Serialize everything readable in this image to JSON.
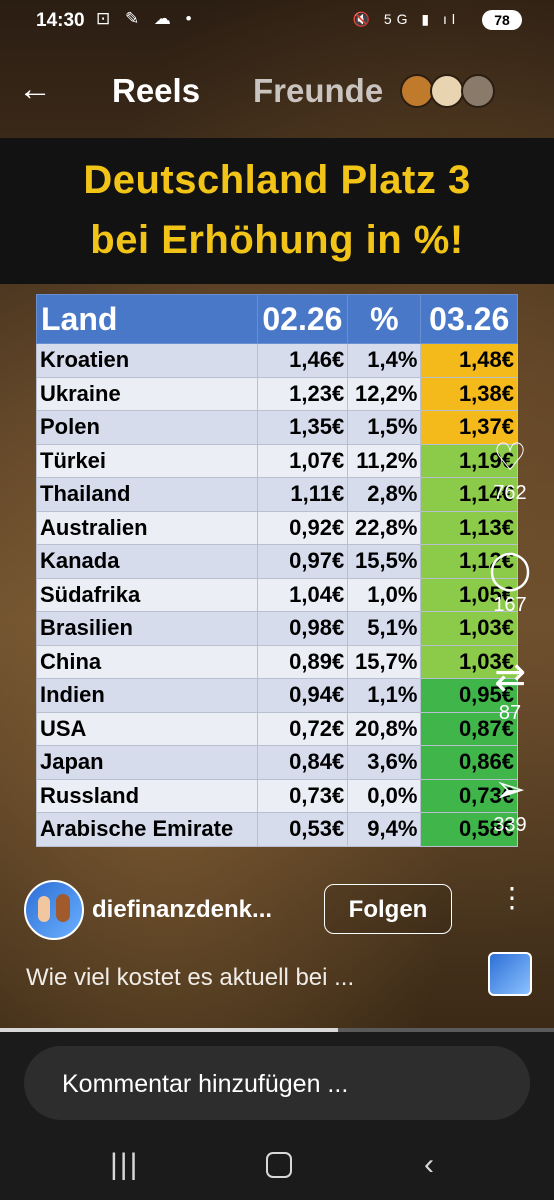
{
  "status_bar": {
    "time": "14:30",
    "left_icons": "⊡ ✎ ☁ •",
    "right_icons": "🔇 5G ▮ ıl",
    "battery": "78"
  },
  "nav": {
    "back_icon": "←",
    "reels_tab": "Reels",
    "friends_tab": "Freunde"
  },
  "video": {
    "headline_line1": "Deutschland Platz 3",
    "headline_line2": "bei Erhöhung in %!",
    "table": {
      "headers": [
        "Land",
        "02.26",
        "%",
        "03.26"
      ],
      "rows": [
        {
          "land": "Kroatien",
          "v1": "1,46€",
          "pct": "1,4%",
          "v2": "1,48€",
          "color": "#f4b91a"
        },
        {
          "land": "Ukraine",
          "v1": "1,23€",
          "pct": "12,2%",
          "v2": "1,38€",
          "color": "#f4b91a"
        },
        {
          "land": "Polen",
          "v1": "1,35€",
          "pct": "1,5%",
          "v2": "1,37€",
          "color": "#f4b91a"
        },
        {
          "land": "Türkei",
          "v1": "1,07€",
          "pct": "11,2%",
          "v2": "1,19€",
          "color": "#8ccb4a"
        },
        {
          "land": "Thailand",
          "v1": "1,11€",
          "pct": "2,8%",
          "v2": "1,14€",
          "color": "#8ccb4a"
        },
        {
          "land": "Australien",
          "v1": "0,92€",
          "pct": "22,8%",
          "v2": "1,13€",
          "color": "#8ccb4a"
        },
        {
          "land": "Kanada",
          "v1": "0,97€",
          "pct": "15,5%",
          "v2": "1,12€",
          "color": "#8ccb4a"
        },
        {
          "land": "Südafrika",
          "v1": "1,04€",
          "pct": "1,0%",
          "v2": "1,05€",
          "color": "#8ccb4a"
        },
        {
          "land": "Brasilien",
          "v1": "0,98€",
          "pct": "5,1%",
          "v2": "1,03€",
          "color": "#8ccb4a"
        },
        {
          "land": "China",
          "v1": "0,89€",
          "pct": "15,7%",
          "v2": "1,03€",
          "color": "#8ccb4a"
        },
        {
          "land": "Indien",
          "v1": "0,94€",
          "pct": "1,1%",
          "v2": "0,95€",
          "color": "#3fb54a"
        },
        {
          "land": "USA",
          "v1": "0,72€",
          "pct": "20,8%",
          "v2": "0,87€",
          "color": "#3fb54a"
        },
        {
          "land": "Japan",
          "v1": "0,84€",
          "pct": "3,6%",
          "v2": "0,86€",
          "color": "#3fb54a"
        },
        {
          "land": "Russland",
          "v1": "0,73€",
          "pct": "0,0%",
          "v2": "0,73€",
          "color": "#3fb54a"
        },
        {
          "land": "Arabische Emirate",
          "v1": "0,53€",
          "pct": "9,4%",
          "v2": "0,58€",
          "color": "#3fb54a"
        }
      ]
    }
  },
  "actions": {
    "like_icon": "♡",
    "likes": "762",
    "comment_icon": "◯",
    "comments": "167",
    "repost_icon": "⇄",
    "reposts": "87",
    "share_icon": "➢",
    "shares": "339"
  },
  "post": {
    "username": "diefinanzdenk...",
    "follow_label": "Folgen",
    "more_icon": "⋮",
    "caption": "Wie viel kostet es aktuell bei ..."
  },
  "progress": 0.61,
  "comment": {
    "placeholder": "Kommentar hinzufügen ..."
  },
  "system_nav": {
    "recent_icon": "|||",
    "back_icon": "‹"
  }
}
